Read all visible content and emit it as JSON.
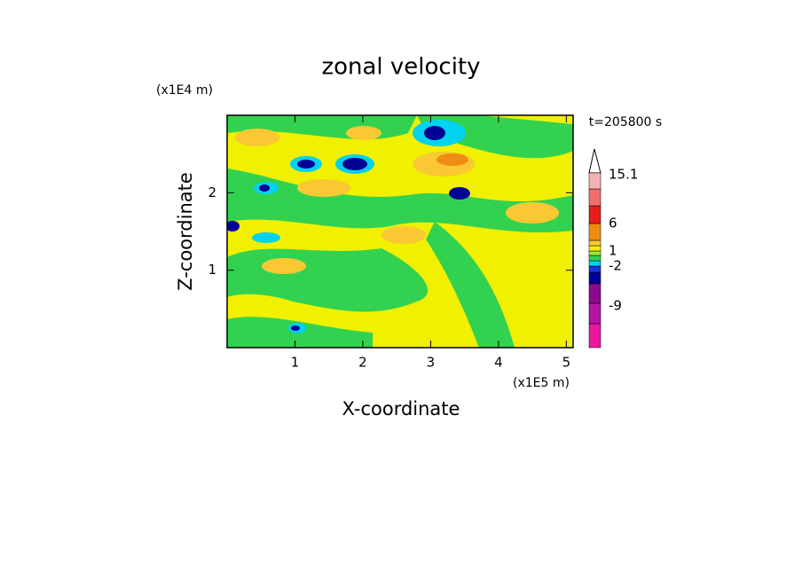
{
  "chart_data": {
    "type": "contour",
    "title": "zonal velocity",
    "x_label": "X-coordinate",
    "y_label": "Z-coordinate",
    "x_unit": "(x1E5 m)",
    "y_unit": "(x1E4 m)",
    "time_label": "t=205800 s",
    "xlim": [
      0,
      5.1
    ],
    "xticks": [
      1,
      2,
      3,
      4,
      5
    ],
    "ylim": [
      0,
      3
    ],
    "yticks": [
      1,
      2
    ],
    "colorbar": {
      "colors": [
        "#e8199f",
        "#b414a0",
        "#8c0a8c",
        "#000096",
        "#1e32dc",
        "#00d2f0",
        "#32d250",
        "#a0e632",
        "#f0f000",
        "#fac832",
        "#f08c14",
        "#e61e1e",
        "#f06e6e",
        "#f5b4b4"
      ],
      "ticks": [
        -9,
        -2,
        1,
        6,
        15.1
      ]
    }
  }
}
